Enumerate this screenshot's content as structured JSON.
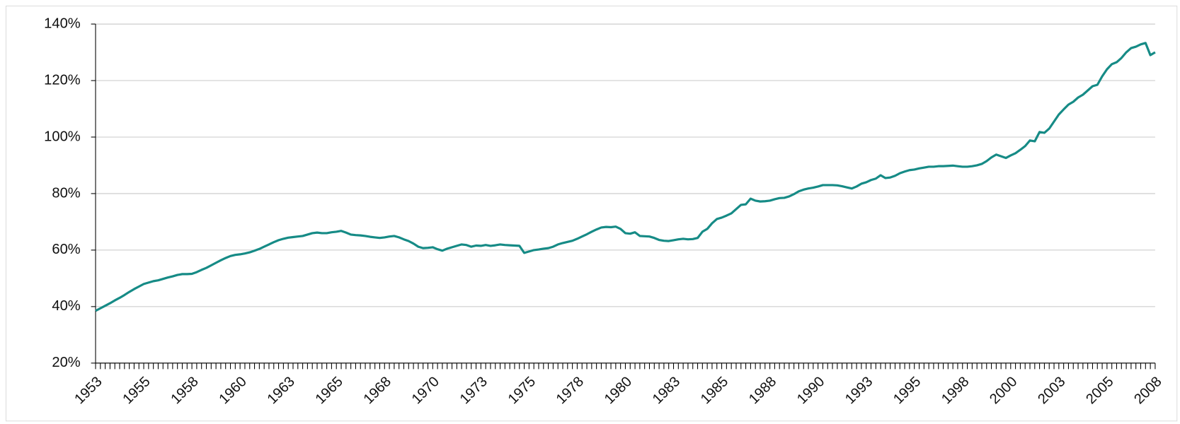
{
  "chart_data": {
    "type": "line",
    "categories": [
      "1953",
      null,
      null,
      null,
      null,
      null,
      null,
      null,
      null,
      null,
      "1955",
      null,
      null,
      null,
      null,
      null,
      null,
      null,
      null,
      null,
      "1958",
      null,
      null,
      null,
      null,
      null,
      null,
      null,
      null,
      null,
      "1960",
      null,
      null,
      null,
      null,
      null,
      null,
      null,
      null,
      null,
      "1963",
      null,
      null,
      null,
      null,
      null,
      null,
      null,
      null,
      null,
      "1965",
      null,
      null,
      null,
      null,
      null,
      null,
      null,
      null,
      null,
      "1968",
      null,
      null,
      null,
      null,
      null,
      null,
      null,
      null,
      null,
      "1970",
      null,
      null,
      null,
      null,
      null,
      null,
      null,
      null,
      null,
      "1973",
      null,
      null,
      null,
      null,
      null,
      null,
      null,
      null,
      null,
      "1975",
      null,
      null,
      null,
      null,
      null,
      null,
      null,
      null,
      null,
      "1978",
      null,
      null,
      null,
      null,
      null,
      null,
      null,
      null,
      null,
      "1980",
      null,
      null,
      null,
      null,
      null,
      null,
      null,
      null,
      null,
      "1983",
      null,
      null,
      null,
      null,
      null,
      null,
      null,
      null,
      null,
      "1985",
      null,
      null,
      null,
      null,
      null,
      null,
      null,
      null,
      null,
      "1988",
      null,
      null,
      null,
      null,
      null,
      null,
      null,
      null,
      null,
      "1990",
      null,
      null,
      null,
      null,
      null,
      null,
      null,
      null,
      null,
      "1993",
      null,
      null,
      null,
      null,
      null,
      null,
      null,
      null,
      null,
      "1995",
      null,
      null,
      null,
      null,
      null,
      null,
      null,
      null,
      null,
      "1998",
      null,
      null,
      null,
      null,
      null,
      null,
      null,
      null,
      null,
      "2000",
      null,
      null,
      null,
      null,
      null,
      null,
      null,
      null,
      null,
      "2003",
      null,
      null,
      null,
      null,
      null,
      null,
      null,
      null,
      null,
      "2005",
      null,
      null,
      null,
      null,
      null,
      null,
      null,
      null,
      null,
      "2008"
    ],
    "values": [
      38.5,
      39.4,
      40.3,
      41.2,
      42.2,
      43.1,
      44.1,
      45.2,
      46.2,
      47.1,
      48,
      48.5,
      49,
      49.3,
      49.8,
      50.3,
      50.7,
      51.2,
      51.5,
      51.5,
      51.6,
      52.2,
      53,
      53.7,
      54.6,
      55.5,
      56.4,
      57.2,
      57.9,
      58.3,
      58.5,
      58.8,
      59.2,
      59.8,
      60.4,
      61.2,
      62,
      62.8,
      63.5,
      64,
      64.4,
      64.6,
      64.8,
      65,
      65.5,
      66,
      66.2,
      66,
      66,
      66.3,
      66.5,
      66.8,
      66.2,
      65.5,
      65.3,
      65.2,
      65,
      64.7,
      64.5,
      64.3,
      64.5,
      64.8,
      65,
      64.5,
      63.8,
      63.2,
      62.3,
      61.2,
      60.7,
      60.8,
      61,
      60.3,
      59.8,
      60.5,
      61,
      61.5,
      62,
      61.8,
      61.2,
      61.6,
      61.5,
      61.8,
      61.5,
      61.7,
      62,
      61.8,
      61.7,
      61.6,
      61.5,
      59,
      59.5,
      60,
      60.2,
      60.5,
      60.7,
      61.2,
      62,
      62.5,
      62.9,
      63.3,
      64,
      64.8,
      65.6,
      66.5,
      67.3,
      68,
      68.2,
      68.1,
      68.3,
      67.5,
      66,
      65.8,
      66.3,
      65,
      64.9,
      64.8,
      64.3,
      63.6,
      63.3,
      63.2,
      63.5,
      63.8,
      64,
      63.8,
      63.9,
      64.3,
      66.5,
      67.5,
      69.5,
      71,
      71.5,
      72.2,
      73,
      74.5,
      76,
      76.2,
      78.2,
      77.5,
      77.2,
      77.3,
      77.5,
      78,
      78.4,
      78.5,
      79,
      79.8,
      80.8,
      81.4,
      81.8,
      82.1,
      82.5,
      83,
      83,
      83,
      82.9,
      82.6,
      82.2,
      81.8,
      82.5,
      83.5,
      84,
      84.8,
      85.3,
      86.5,
      85.5,
      85.7,
      86.3,
      87.2,
      87.8,
      88.3,
      88.5,
      88.9,
      89.2,
      89.5,
      89.5,
      89.7,
      89.7,
      89.8,
      89.9,
      89.7,
      89.5,
      89.5,
      89.7,
      90,
      90.5,
      91.5,
      92.8,
      93.8,
      93.2,
      92.6,
      93.5,
      94.3,
      95.5,
      96.8,
      98.8,
      98.5,
      101.8,
      101.5,
      103,
      105.5,
      108,
      109.8,
      111.5,
      112.5,
      114,
      115,
      116.5,
      118,
      118.5,
      121.5,
      124,
      125.8,
      126.5,
      128,
      130,
      131.5,
      132,
      132.8,
      133.3,
      129,
      130
    ],
    "color": "#168b86",
    "ylim": [
      20,
      140
    ],
    "yticks": [
      {
        "value": 20,
        "label": "20%"
      },
      {
        "value": 40,
        "label": "40%"
      },
      {
        "value": 60,
        "label": "60%"
      },
      {
        "value": 80,
        "label": "80%"
      },
      {
        "value": 100,
        "label": "100%"
      },
      {
        "value": 120,
        "label": "120%"
      },
      {
        "value": 140,
        "label": "140%"
      }
    ],
    "grid": true
  }
}
